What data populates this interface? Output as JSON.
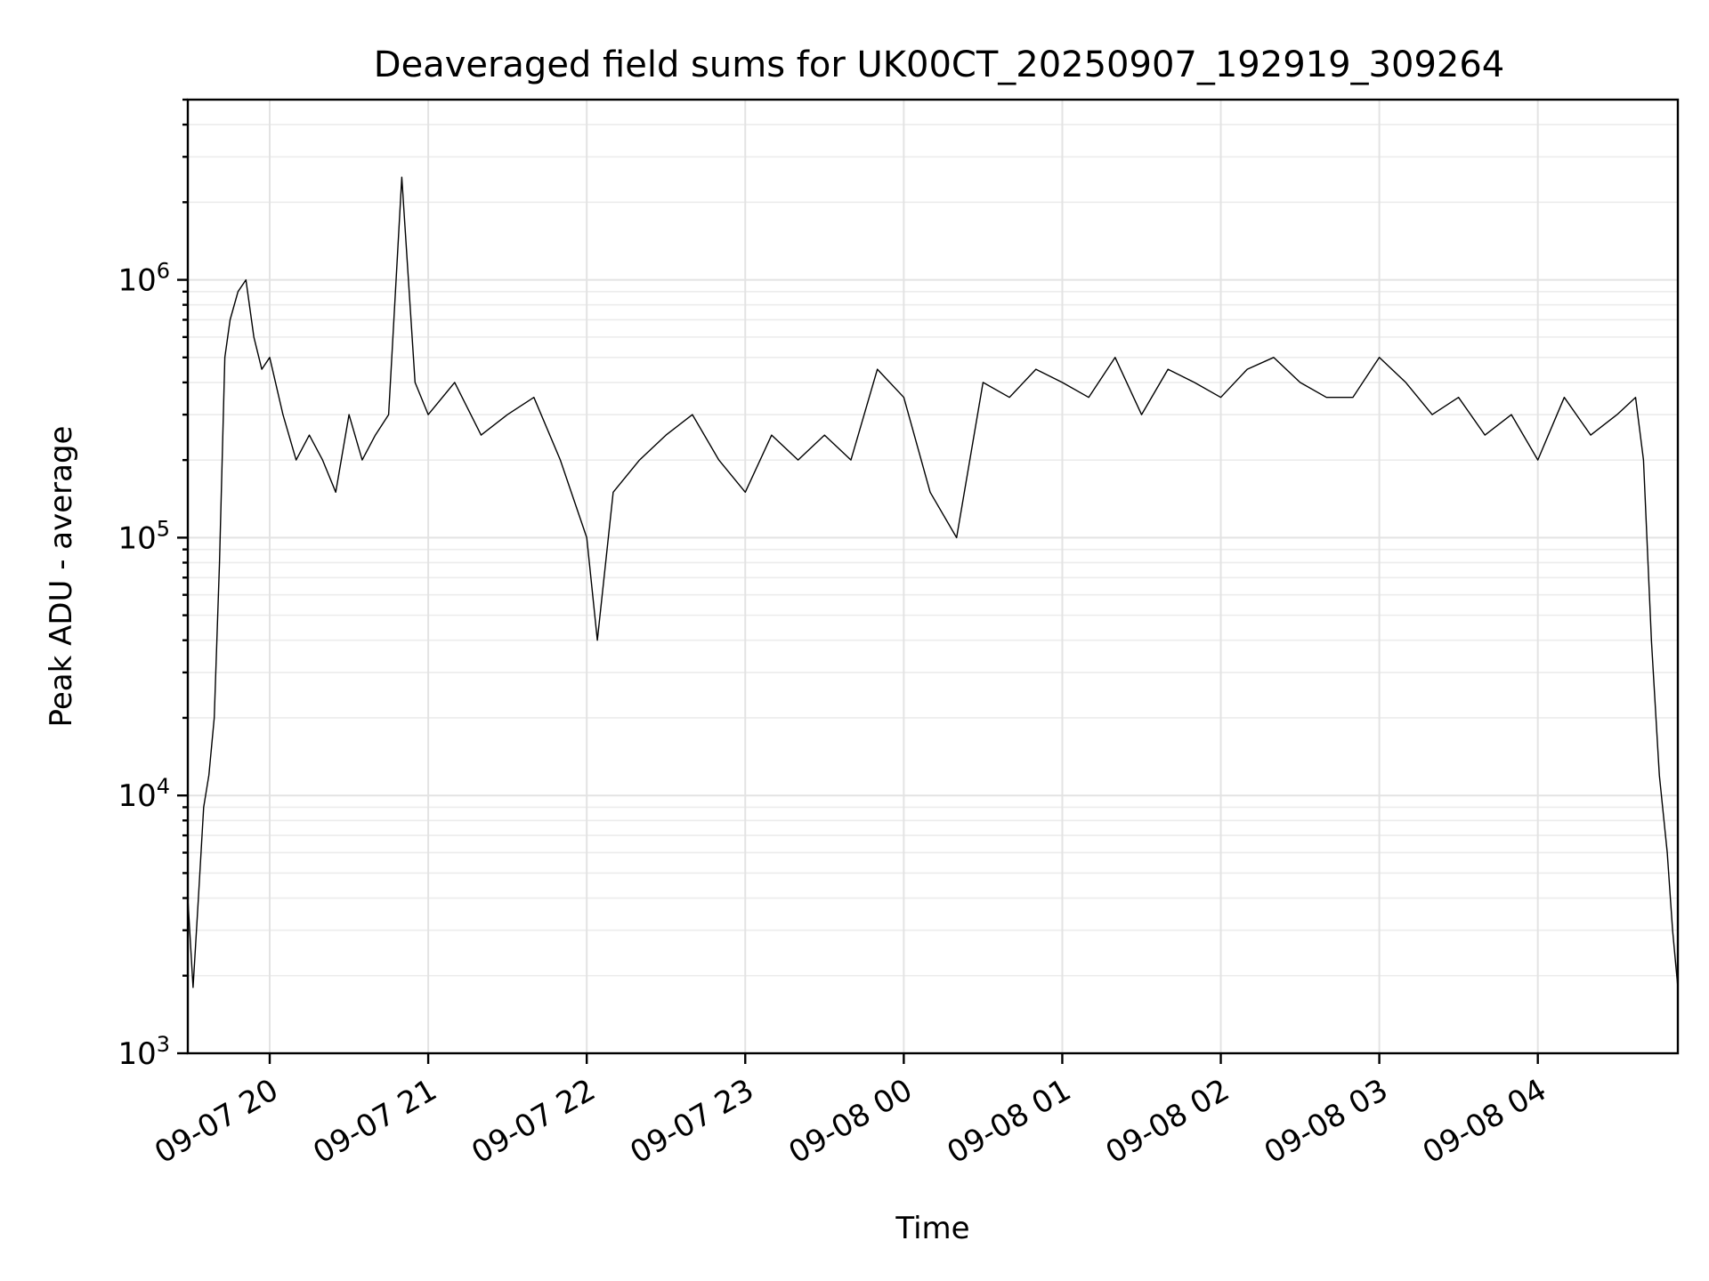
{
  "chart_data": {
    "type": "line",
    "title": "Deaveraged field sums for UK00CT_20250907_192919_309264",
    "xlabel": "Time",
    "ylabel": "Peak ADU - average",
    "yscale": "log",
    "ylim": [
      1000,
      5000000
    ],
    "xlim": [
      "2025-09-07 19:29",
      "2025-09-08 04:53"
    ],
    "grid": true,
    "line_color": "#000000",
    "x_ticks": [
      {
        "label": "09-07 20",
        "time": "2025-09-07 20:00"
      },
      {
        "label": "09-07 21",
        "time": "2025-09-07 21:00"
      },
      {
        "label": "09-07 22",
        "time": "2025-09-07 22:00"
      },
      {
        "label": "09-07 23",
        "time": "2025-09-07 23:00"
      },
      {
        "label": "09-08 00",
        "time": "2025-09-08 00:00"
      },
      {
        "label": "09-08 01",
        "time": "2025-09-08 01:00"
      },
      {
        "label": "09-08 02",
        "time": "2025-09-08 02:00"
      },
      {
        "label": "09-08 03",
        "time": "2025-09-08 03:00"
      },
      {
        "label": "09-08 04",
        "time": "2025-09-08 04:00"
      }
    ],
    "y_ticks": [
      {
        "base": "10",
        "exp": "3",
        "value": 1000
      },
      {
        "base": "10",
        "exp": "4",
        "value": 10000
      },
      {
        "base": "10",
        "exp": "5",
        "value": 100000
      },
      {
        "base": "10",
        "exp": "6",
        "value": 1000000
      }
    ],
    "series": [
      {
        "x": [
          "2025-09-07 19:29",
          "2025-09-07 19:31",
          "2025-09-07 19:33",
          "2025-09-07 19:35",
          "2025-09-07 19:37",
          "2025-09-07 19:39",
          "2025-09-07 19:41",
          "2025-09-07 19:43",
          "2025-09-07 19:45",
          "2025-09-07 19:48",
          "2025-09-07 19:51",
          "2025-09-07 19:54",
          "2025-09-07 19:57",
          "2025-09-07 20:00",
          "2025-09-07 20:05",
          "2025-09-07 20:10",
          "2025-09-07 20:15",
          "2025-09-07 20:20",
          "2025-09-07 20:25",
          "2025-09-07 20:30",
          "2025-09-07 20:35",
          "2025-09-07 20:40",
          "2025-09-07 20:45",
          "2025-09-07 20:50",
          "2025-09-07 20:55",
          "2025-09-07 21:00",
          "2025-09-07 21:10",
          "2025-09-07 21:20",
          "2025-09-07 21:30",
          "2025-09-07 21:40",
          "2025-09-07 21:50",
          "2025-09-07 22:00",
          "2025-09-07 22:04",
          "2025-09-07 22:10",
          "2025-09-07 22:20",
          "2025-09-07 22:30",
          "2025-09-07 22:40",
          "2025-09-07 22:50",
          "2025-09-07 23:00",
          "2025-09-07 23:10",
          "2025-09-07 23:20",
          "2025-09-07 23:30",
          "2025-09-07 23:40",
          "2025-09-07 23:50",
          "2025-09-08 00:00",
          "2025-09-08 00:10",
          "2025-09-08 00:20",
          "2025-09-08 00:30",
          "2025-09-08 00:40",
          "2025-09-08 00:50",
          "2025-09-08 01:00",
          "2025-09-08 01:10",
          "2025-09-08 01:20",
          "2025-09-08 01:30",
          "2025-09-08 01:40",
          "2025-09-08 01:50",
          "2025-09-08 02:00",
          "2025-09-08 02:10",
          "2025-09-08 02:20",
          "2025-09-08 02:30",
          "2025-09-08 02:40",
          "2025-09-08 02:50",
          "2025-09-08 03:00",
          "2025-09-08 03:10",
          "2025-09-08 03:20",
          "2025-09-08 03:30",
          "2025-09-08 03:40",
          "2025-09-08 03:50",
          "2025-09-08 04:00",
          "2025-09-08 04:10",
          "2025-09-08 04:20",
          "2025-09-08 04:30",
          "2025-09-08 04:37",
          "2025-09-08 04:40",
          "2025-09-08 04:43",
          "2025-09-08 04:46",
          "2025-09-08 04:49",
          "2025-09-08 04:51",
          "2025-09-08 04:53"
        ],
        "y": [
          4000,
          1800,
          4000,
          9000,
          12000,
          20000,
          80000,
          500000,
          700000,
          900000,
          1000000,
          600000,
          450000,
          500000,
          300000,
          200000,
          250000,
          200000,
          150000,
          300000,
          200000,
          250000,
          300000,
          2500000,
          400000,
          300000,
          400000,
          250000,
          300000,
          350000,
          200000,
          100000,
          40000,
          150000,
          200000,
          250000,
          300000,
          200000,
          150000,
          250000,
          200000,
          250000,
          200000,
          450000,
          350000,
          150000,
          100000,
          400000,
          350000,
          450000,
          400000,
          350000,
          500000,
          300000,
          450000,
          400000,
          350000,
          450000,
          500000,
          400000,
          350000,
          350000,
          500000,
          400000,
          300000,
          350000,
          250000,
          300000,
          200000,
          350000,
          250000,
          300000,
          350000,
          200000,
          40000,
          12000,
          6000,
          3000,
          1800
        ]
      }
    ]
  }
}
